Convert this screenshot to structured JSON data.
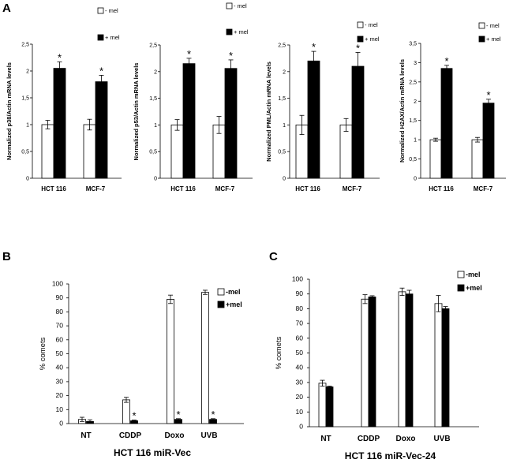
{
  "panel_labels": [
    "A",
    "B",
    "C"
  ],
  "chart_data": [
    {
      "type": "bar",
      "panel": "A",
      "ylabel": "Normalized p38/Actin mRNA levels",
      "categories": [
        "HCT 116",
        "MCF-7"
      ],
      "ylim": [
        0,
        2.5
      ],
      "ticks": [
        "0",
        "0,5",
        "1",
        "1,5",
        "2",
        "2,5"
      ],
      "series": [
        {
          "name": "- mel",
          "values": [
            1.0,
            1.0
          ],
          "errors": [
            0.08,
            0.1
          ],
          "stars": [
            false,
            false
          ]
        },
        {
          "name": "+ mel",
          "values": [
            2.05,
            1.8
          ],
          "errors": [
            0.12,
            0.12
          ],
          "stars": [
            true,
            true
          ]
        }
      ]
    },
    {
      "type": "bar",
      "panel": "A",
      "ylabel": "Normalized p53/Actin mRNA levels",
      "categories": [
        "HCT 116",
        "MCF-7"
      ],
      "ylim": [
        0,
        2.5
      ],
      "ticks": [
        "0",
        "0,5",
        "1",
        "1,5",
        "2",
        "2,5"
      ],
      "series": [
        {
          "name": "- mel",
          "values": [
            1.0,
            1.0
          ],
          "errors": [
            0.1,
            0.16
          ],
          "stars": [
            false,
            false
          ]
        },
        {
          "name": "+ mel",
          "values": [
            2.15,
            2.06
          ],
          "errors": [
            0.1,
            0.16
          ],
          "stars": [
            true,
            true
          ]
        }
      ]
    },
    {
      "type": "bar",
      "panel": "A",
      "ylabel": "Normalized PML/Actin mRNA levels",
      "categories": [
        "HCT 116",
        "MCF-7"
      ],
      "ylim": [
        0,
        2.5
      ],
      "ticks": [
        "0",
        "0,5",
        "1",
        "1,5",
        "2",
        "2,5"
      ],
      "series": [
        {
          "name": "- mel",
          "values": [
            1.0,
            1.0
          ],
          "errors": [
            0.18,
            0.12
          ],
          "stars": [
            false,
            false
          ]
        },
        {
          "name": "+ mel",
          "values": [
            2.2,
            2.1
          ],
          "errors": [
            0.18,
            0.26
          ],
          "stars": [
            true,
            true
          ]
        }
      ]
    },
    {
      "type": "bar",
      "panel": "A",
      "ylabel": "Normalized H2AX/Actin mRNA levels",
      "categories": [
        "HCT 116",
        "MCF-7"
      ],
      "ylim": [
        0,
        3.5
      ],
      "ticks": [
        "0",
        "0,5",
        "1",
        "1,5",
        "2",
        "2,5",
        "3",
        "3,5"
      ],
      "series": [
        {
          "name": "- mel",
          "values": [
            1.0,
            1.0
          ],
          "errors": [
            0.04,
            0.06
          ],
          "stars": [
            false,
            false
          ]
        },
        {
          "name": "+ mel",
          "values": [
            2.85,
            1.95
          ],
          "errors": [
            0.08,
            0.1
          ],
          "stars": [
            true,
            true
          ]
        }
      ]
    },
    {
      "type": "bar",
      "panel": "B",
      "ylabel": "% comets",
      "xtitle": "HCT 116 miR-Vec",
      "categories": [
        "NT",
        "CDDP",
        "Doxo",
        "UVB"
      ],
      "ylim": [
        0,
        100
      ],
      "ticks": [
        "0",
        "10",
        "20",
        "30",
        "40",
        "50",
        "60",
        "70",
        "80",
        "90",
        "100"
      ],
      "series": [
        {
          "name": "-mel",
          "values": [
            3,
            17,
            89,
            94
          ],
          "errors": [
            1.5,
            1.8,
            3,
            1.5
          ],
          "stars": [
            false,
            false,
            false,
            false
          ]
        },
        {
          "name": "+mel",
          "values": [
            1.5,
            2,
            3,
            3
          ],
          "errors": [
            1.2,
            0.5,
            0.5,
            0.5
          ],
          "stars": [
            false,
            true,
            true,
            true
          ]
        }
      ]
    },
    {
      "type": "bar",
      "panel": "C",
      "ylabel": "% comets",
      "xtitle": "HCT 116 miR-Vec-24",
      "categories": [
        "NT",
        "CDDP",
        "Doxo",
        "UVB"
      ],
      "ylim": [
        0,
        100
      ],
      "ticks": [
        "0",
        "10",
        "20",
        "30",
        "40",
        "50",
        "60",
        "70",
        "80",
        "90",
        "100"
      ],
      "series": [
        {
          "name": "-mel",
          "values": [
            29.5,
            86.5,
            91.5,
            83.5
          ],
          "errors": [
            2,
            3,
            2.5,
            5.5
          ],
          "stars": [
            false,
            false,
            false,
            false
          ]
        },
        {
          "name": "+mel",
          "values": [
            27,
            88,
            90,
            80
          ],
          "errors": [
            0.5,
            0.8,
            2.5,
            1.5
          ],
          "stars": [
            false,
            false,
            false,
            false
          ]
        }
      ]
    }
  ]
}
